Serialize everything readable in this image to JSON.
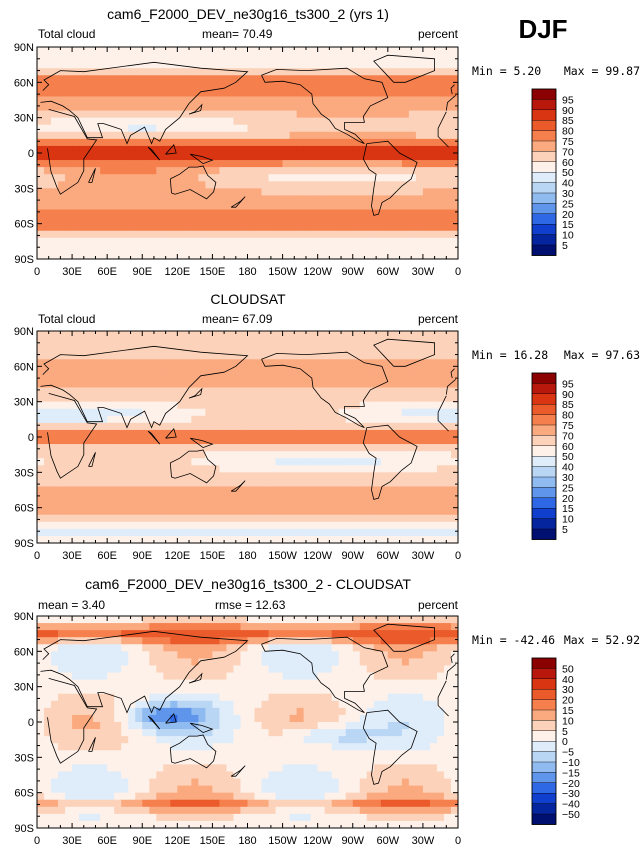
{
  "season": "DJF",
  "x_ticks": [
    "0",
    "30E",
    "60E",
    "90E",
    "120E",
    "150E",
    "180",
    "150W",
    "120W",
    "90W",
    "60W",
    "30W",
    "0"
  ],
  "y_ticks": [
    "90N",
    "60N",
    "30N",
    "0",
    "30S",
    "60S",
    "90S"
  ],
  "chart_data": [
    {
      "type": "heatmap",
      "title": "cam6_F2000_DEV_ne30g16_ts300_2 (yrs 1)",
      "left_label": "Total cloud",
      "center_label": "mean=   70.49",
      "right_label": "percent",
      "mean": 70.49,
      "min": 5.2,
      "max": 99.87,
      "min_text": "Min =    5.20",
      "max_text": "Max =  99.87",
      "units": "percent",
      "xlim": [
        0,
        360
      ],
      "ylim": [
        -90,
        90
      ],
      "levels": [
        "95",
        "90",
        "85",
        "80",
        "75",
        "70",
        "60",
        "50",
        "40",
        "30",
        "25",
        "20",
        "15",
        "10",
        "5"
      ],
      "colors": [
        "#8b0000",
        "#b8170b",
        "#d93512",
        "#ea5a2b",
        "#f5804e",
        "#fbaa80",
        "#fcd3ba",
        "#fdf1ea",
        "#dfecfa",
        "#bad6f5",
        "#8fbbf0",
        "#5f95eb",
        "#2f68e4",
        "#0f3fcc",
        "#04259e",
        "#001070"
      ]
    },
    {
      "type": "heatmap",
      "title": "CLOUDSAT",
      "left_label": "Total cloud",
      "center_label": "mean=   67.09",
      "right_label": "percent",
      "mean": 67.09,
      "min": 16.28,
      "max": 97.63,
      "min_text": "Min =  16.28",
      "max_text": "Max =  97.63",
      "units": "percent",
      "xlim": [
        0,
        360
      ],
      "ylim": [
        -90,
        90
      ],
      "levels": [
        "95",
        "90",
        "85",
        "80",
        "75",
        "70",
        "60",
        "50",
        "40",
        "30",
        "25",
        "20",
        "15",
        "10",
        "5"
      ],
      "colors": [
        "#8b0000",
        "#b8170b",
        "#d93512",
        "#ea5a2b",
        "#f5804e",
        "#fbaa80",
        "#fcd3ba",
        "#fdf1ea",
        "#dfecfa",
        "#bad6f5",
        "#8fbbf0",
        "#5f95eb",
        "#2f68e4",
        "#0f3fcc",
        "#04259e",
        "#001070"
      ]
    },
    {
      "type": "heatmap",
      "title": "cam6_F2000_DEV_ne30g16_ts300_2 - CLOUDSAT",
      "left_label": "mean =    3.40",
      "center_label": "rmse =   12.63",
      "right_label": "percent",
      "mean": 3.4,
      "rmse": 12.63,
      "min": -42.46,
      "max": 52.92,
      "min_text": "Min = -42.46",
      "max_text": "Max =  52.92",
      "units": "percent",
      "xlim": [
        0,
        360
      ],
      "ylim": [
        -90,
        90
      ],
      "levels": [
        "50",
        "40",
        "30",
        "20",
        "15",
        "10",
        "5",
        "0",
        "−5",
        "−10",
        "−15",
        "−20",
        "−30",
        "−40",
        "−50"
      ],
      "colors": [
        "#8b0000",
        "#b8170b",
        "#d93512",
        "#ea5a2b",
        "#f5804e",
        "#fbaa80",
        "#fcd3ba",
        "#fdf1ea",
        "#dfecfa",
        "#bad6f5",
        "#8fbbf0",
        "#5f95eb",
        "#2f68e4",
        "#0f3fcc",
        "#04259e",
        "#001070"
      ]
    }
  ]
}
